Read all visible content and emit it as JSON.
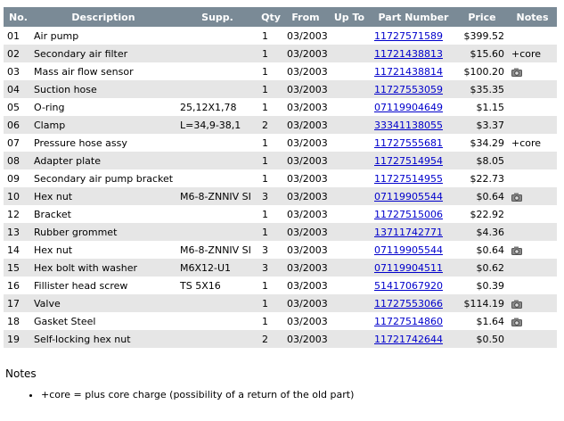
{
  "table": {
    "headers": {
      "no": "No.",
      "description": "Description",
      "supp": "Supp.",
      "qty": "Qty",
      "from": "From",
      "upto": "Up To",
      "part_number": "Part Number",
      "price": "Price",
      "notes": "Notes"
    },
    "rows": [
      {
        "no": "01",
        "description": "Air pump",
        "supp": "",
        "qty": "1",
        "from": "03/2003",
        "upto": "",
        "part_number": "11727571589",
        "price": "$399.52",
        "notes": "",
        "camera": false
      },
      {
        "no": "02",
        "description": "Secondary air filter",
        "supp": "",
        "qty": "1",
        "from": "03/2003",
        "upto": "",
        "part_number": "11721438813",
        "price": "$15.60",
        "notes": "+core",
        "camera": false
      },
      {
        "no": "03",
        "description": "Mass air flow sensor",
        "supp": "",
        "qty": "1",
        "from": "03/2003",
        "upto": "",
        "part_number": "11721438814",
        "price": "$100.20",
        "notes": "",
        "camera": true
      },
      {
        "no": "04",
        "description": "Suction hose",
        "supp": "",
        "qty": "1",
        "from": "03/2003",
        "upto": "",
        "part_number": "11727553059",
        "price": "$35.35",
        "notes": "",
        "camera": false
      },
      {
        "no": "05",
        "description": "O-ring",
        "supp": "25,12X1,78",
        "qty": "1",
        "from": "03/2003",
        "upto": "",
        "part_number": "07119904649",
        "price": "$1.15",
        "notes": "",
        "camera": false
      },
      {
        "no": "06",
        "description": "Clamp",
        "supp": "L=34,9-38,1",
        "qty": "2",
        "from": "03/2003",
        "upto": "",
        "part_number": "33341138055",
        "price": "$3.37",
        "notes": "",
        "camera": false
      },
      {
        "no": "07",
        "description": "Pressure hose assy",
        "supp": "",
        "qty": "1",
        "from": "03/2003",
        "upto": "",
        "part_number": "11727555681",
        "price": "$34.29",
        "notes": "+core",
        "camera": false
      },
      {
        "no": "08",
        "description": "Adapter plate",
        "supp": "",
        "qty": "1",
        "from": "03/2003",
        "upto": "",
        "part_number": "11727514954",
        "price": "$8.05",
        "notes": "",
        "camera": false
      },
      {
        "no": "09",
        "description": "Secondary air pump bracket",
        "supp": "",
        "qty": "1",
        "from": "03/2003",
        "upto": "",
        "part_number": "11727514955",
        "price": "$22.73",
        "notes": "",
        "camera": false
      },
      {
        "no": "10",
        "description": "Hex nut",
        "supp": "M6-8-ZNNIV SI",
        "qty": "3",
        "from": "03/2003",
        "upto": "",
        "part_number": "07119905544",
        "price": "$0.64",
        "notes": "",
        "camera": true
      },
      {
        "no": "12",
        "description": "Bracket",
        "supp": "",
        "qty": "1",
        "from": "03/2003",
        "upto": "",
        "part_number": "11727515006",
        "price": "$22.92",
        "notes": "",
        "camera": false
      },
      {
        "no": "13",
        "description": "Rubber grommet",
        "supp": "",
        "qty": "1",
        "from": "03/2003",
        "upto": "",
        "part_number": "13711742771",
        "price": "$4.36",
        "notes": "",
        "camera": false
      },
      {
        "no": "14",
        "description": "Hex nut",
        "supp": "M6-8-ZNNIV SI",
        "qty": "3",
        "from": "03/2003",
        "upto": "",
        "part_number": "07119905544",
        "price": "$0.64",
        "notes": "",
        "camera": true
      },
      {
        "no": "15",
        "description": "Hex bolt with washer",
        "supp": "M6X12-U1",
        "qty": "3",
        "from": "03/2003",
        "upto": "",
        "part_number": "07119904511",
        "price": "$0.62",
        "notes": "",
        "camera": false
      },
      {
        "no": "16",
        "description": "Fillister head screw",
        "supp": "TS 5X16",
        "qty": "1",
        "from": "03/2003",
        "upto": "",
        "part_number": "51417067920",
        "price": "$0.39",
        "notes": "",
        "camera": false
      },
      {
        "no": "17",
        "description": "Valve",
        "supp": "",
        "qty": "1",
        "from": "03/2003",
        "upto": "",
        "part_number": "11727553066",
        "price": "$114.19",
        "notes": "",
        "camera": true
      },
      {
        "no": "18",
        "description": "Gasket Steel",
        "supp": "",
        "qty": "1",
        "from": "03/2003",
        "upto": "",
        "part_number": "11727514860",
        "price": "$1.64",
        "notes": "",
        "camera": true
      },
      {
        "no": "19",
        "description": "Self-locking hex nut",
        "supp": "",
        "qty": "2",
        "from": "03/2003",
        "upto": "",
        "part_number": "11721742644",
        "price": "$0.50",
        "notes": "",
        "camera": false
      }
    ]
  },
  "notes": {
    "title": "Notes",
    "items": [
      "+core = plus core charge (possibility of a return of the old part)"
    ]
  },
  "icons": {
    "camera": "camera-icon"
  },
  "colors": {
    "header_bg": "#7a8a96",
    "row_alt_bg": "#e6e6e6",
    "link": "#0000cc"
  }
}
